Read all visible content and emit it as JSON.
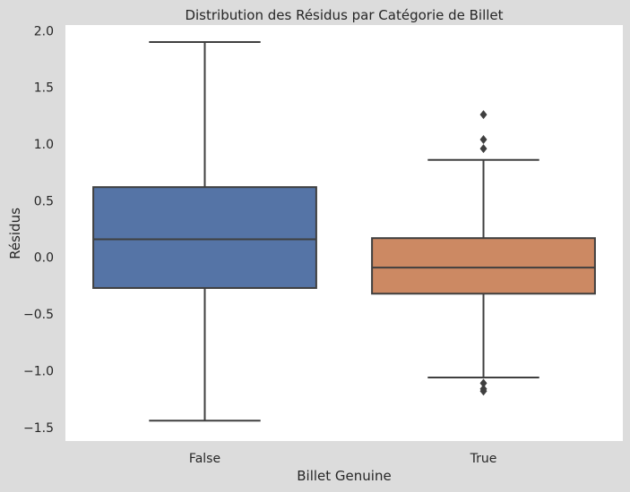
{
  "chart_data": {
    "type": "box",
    "title": "Distribution des Résidus par Catégorie de Billet",
    "xlabel": "Billet Genuine",
    "ylabel": "Résidus",
    "categories": [
      "False",
      "True"
    ],
    "ylim": [
      -1.62,
      2.05
    ],
    "yticks": [
      2.0,
      1.5,
      1.0,
      0.5,
      0.0,
      -0.5,
      -1.0,
      -1.5
    ],
    "ytick_labels": [
      "2.0",
      "1.5",
      "1.0",
      "0.5",
      "0.0",
      "−0.5",
      "−1.0",
      "−1.5"
    ],
    "grid": false,
    "boxes": [
      {
        "category": "False",
        "color": "#5574a6",
        "whislo": -1.44,
        "q1": -0.27,
        "median": 0.16,
        "q3": 0.62,
        "whishi": 1.9,
        "fliers": []
      },
      {
        "category": "True",
        "color": "#cc8963",
        "whislo": -1.06,
        "q1": -0.32,
        "median": -0.09,
        "q3": 0.17,
        "whishi": 0.86,
        "fliers": [
          1.26,
          1.04,
          0.96,
          -1.11,
          -1.16,
          -1.18
        ]
      }
    ]
  }
}
